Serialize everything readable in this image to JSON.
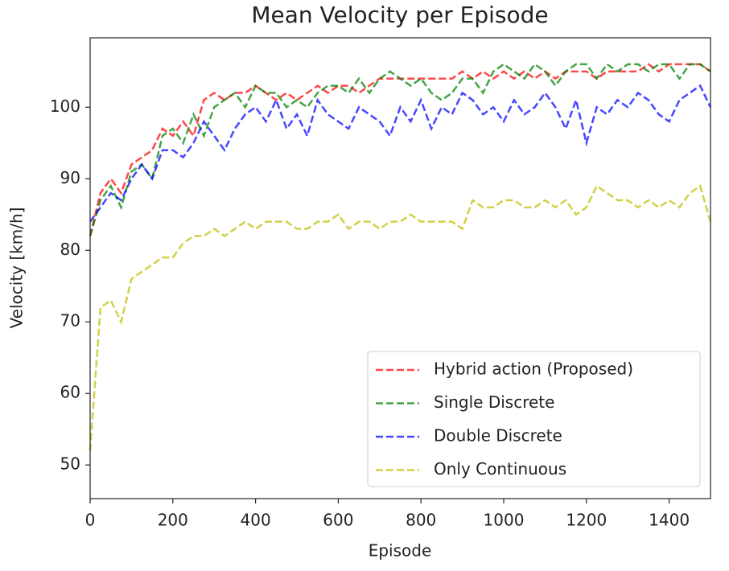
{
  "chart_data": {
    "type": "line",
    "title": "Mean Velocity per Episode",
    "x_label": "Episode",
    "y_label": "Velocity [km/h]",
    "x": [
      0,
      25,
      50,
      75,
      100,
      125,
      150,
      175,
      200,
      225,
      250,
      275,
      300,
      325,
      350,
      375,
      400,
      425,
      450,
      475,
      500,
      525,
      550,
      575,
      600,
      625,
      650,
      675,
      700,
      725,
      750,
      775,
      800,
      825,
      850,
      875,
      900,
      925,
      950,
      975,
      1000,
      1025,
      1050,
      1075,
      1100,
      1125,
      1150,
      1175,
      1200,
      1225,
      1250,
      1275,
      1300,
      1325,
      1350,
      1375,
      1400,
      1425,
      1450,
      1475,
      1500
    ],
    "series": [
      {
        "name": "Hybrid action (Proposed)",
        "color": "#ff0000",
        "values": [
          82,
          88,
          90,
          88,
          92,
          93,
          94,
          97,
          96,
          98,
          96,
          101,
          102,
          101,
          102,
          102,
          103,
          102,
          101,
          102,
          101,
          102,
          103,
          102,
          103,
          103,
          102,
          103,
          104,
          104,
          104,
          104,
          104,
          104,
          104,
          104,
          105,
          104,
          105,
          104,
          105,
          104,
          105,
          104,
          105,
          104,
          105,
          105,
          105,
          104,
          105,
          105,
          105,
          105,
          106,
          105,
          106,
          106,
          106,
          106,
          105
        ]
      },
      {
        "name": "Single Discrete",
        "color": "#008000",
        "values": [
          82,
          87,
          89,
          86,
          91,
          92,
          90,
          96,
          97,
          95,
          99,
          96,
          100,
          101,
          102,
          100,
          103,
          102,
          102,
          100,
          101,
          100,
          102,
          103,
          103,
          102,
          104,
          102,
          104,
          105,
          104,
          103,
          104,
          102,
          101,
          102,
          104,
          104,
          102,
          105,
          106,
          105,
          104,
          106,
          105,
          103,
          105,
          106,
          106,
          104,
          106,
          105,
          106,
          106,
          105,
          106,
          106,
          104,
          106,
          106,
          105
        ]
      },
      {
        "name": "Double Discrete",
        "color": "#0000ff",
        "values": [
          84,
          86,
          88,
          87,
          90,
          92,
          90,
          94,
          94,
          93,
          95,
          98,
          96,
          94,
          97,
          99,
          100,
          98,
          101,
          97,
          99,
          96,
          101,
          99,
          98,
          97,
          100,
          99,
          98,
          96,
          100,
          98,
          101,
          97,
          100,
          99,
          102,
          101,
          99,
          100,
          98,
          101,
          99,
          100,
          102,
          100,
          97,
          101,
          95,
          100,
          99,
          101,
          100,
          102,
          101,
          99,
          98,
          101,
          102,
          103,
          100
        ]
      },
      {
        "name": "Only Continuous",
        "color": "#bfbf00",
        "values": [
          52,
          72,
          73,
          70,
          76,
          77,
          78,
          79,
          79,
          81,
          82,
          82,
          83,
          82,
          83,
          84,
          83,
          84,
          84,
          84,
          83,
          83,
          84,
          84,
          85,
          83,
          84,
          84,
          83,
          84,
          84,
          85,
          84,
          84,
          84,
          84,
          83,
          87,
          86,
          86,
          87,
          87,
          86,
          86,
          87,
          86,
          87,
          85,
          86,
          89,
          88,
          87,
          87,
          86,
          87,
          86,
          87,
          86,
          88,
          89,
          84
        ]
      }
    ],
    "xlim": [
      0,
      1500
    ],
    "xticks": [
      0,
      200,
      400,
      600,
      800,
      1000,
      1200,
      1400
    ],
    "ylim": [
      45.3,
      109.7
    ],
    "yticks": [
      50,
      60,
      70,
      80,
      90,
      100
    ],
    "grid": false,
    "legend_position": "lower right"
  }
}
